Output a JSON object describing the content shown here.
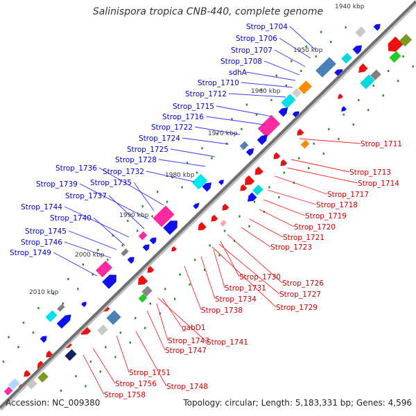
{
  "title": "Salinispora tropica CNB-440, complete genome",
  "footer": {
    "accession": "Accession: NC_009380",
    "summary": "Topology: circular; Length: 5,183,331 bp; Genes: 4,596"
  },
  "colors": {
    "backbone": "#7f7f7f",
    "label_forward": "#0000cc",
    "label_reverse": "#cc0000",
    "leader_forward": "#3333ff",
    "leader_reverse": "#ff2222",
    "tick": "#2a8a2a"
  },
  "ruler": [
    "1940 kbp",
    "1950 kbp",
    "1960 kbp",
    "1970 kbp",
    "1980 kbp",
    "1990 kbp",
    "2000 kbp",
    "2010 kbp"
  ],
  "forward_labels": [
    "Strop_1704",
    "Strop_1706",
    "Strop_1707",
    "Strop_1708",
    "sdhA",
    "Strop_1710",
    "Strop_1712",
    "Strop_1715",
    "Strop_1716",
    "Strop_1722",
    "Strop_1724",
    "Strop_1725",
    "Strop_1728",
    "Strop_1732",
    "Strop_1736",
    "Strop_1735",
    "Strop_1739",
    "Strop_1737",
    "Strop_1744",
    "Strop_1740",
    "Strop_1745",
    "Strop_1746",
    "Strop_1749"
  ],
  "reverse_labels": [
    "Strop_1711",
    "Strop_1713",
    "Strop_1714",
    "Strop_1717",
    "Strop_1718",
    "Strop_1719",
    "Strop_1720",
    "Strop_1721",
    "Strop_1723",
    "Strop_1730",
    "Strop_1726",
    "Strop_1731",
    "Strop_1727",
    "Strop_1734",
    "Strop_1729",
    "Strop_1738",
    "gabD1",
    "Strop_1743",
    "Strop_1741",
    "Strop_1747",
    "Strop_1751",
    "Strop_1748",
    "Strop_1756",
    "Strop_1758"
  ]
}
